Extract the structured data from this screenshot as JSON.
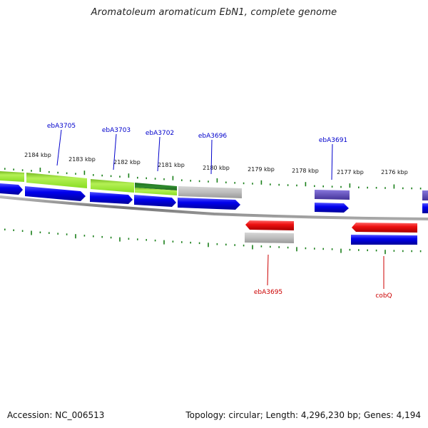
{
  "title": "Aromatoleum aromaticum EbN1, complete genome",
  "footer": {
    "accession": "Accession: NC_006513",
    "summary": "Topology: circular; Length: 4,296,230 bp; Genes: 4,194"
  },
  "kbp_labels": [
    "2184 kbp",
    "2183 kbp",
    "2182 kbp",
    "2181 kbp",
    "2180 kbp",
    "2179 kbp",
    "2178 kbp",
    "2177 kbp",
    "2176 kbp"
  ],
  "gene_labels": {
    "top": [
      "ebA3705",
      "ebA3703",
      "ebA3702",
      "ebA3696",
      "ebA3691"
    ],
    "bottom": [
      "ebA3695",
      "cobQ"
    ]
  },
  "colors": {
    "top_label": "#0000cc",
    "bottom_label": "#cc0000",
    "tick": "#1a7f1a",
    "cds": "#0000ee",
    "gene_lightgreen": "#99ee33",
    "gene_darkgreen": "#2e8b2e",
    "gene_grey": "#bdbdbd",
    "gene_purple": "#6655bb",
    "gene_red": "#ee1111",
    "backbone": "#888888"
  }
}
